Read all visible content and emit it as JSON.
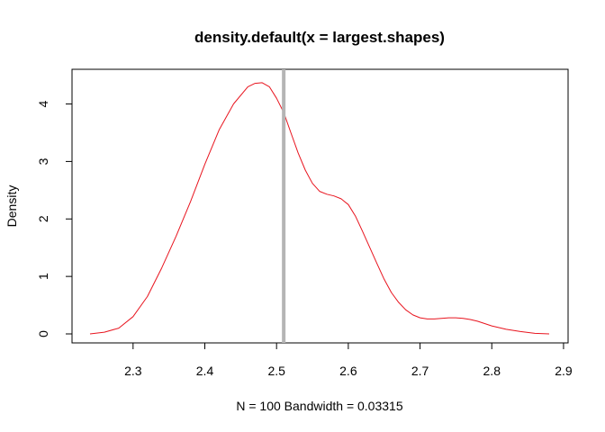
{
  "chart_data": {
    "type": "line",
    "title": "density.default(x = largest.shapes)",
    "xlabel": "N = 100   Bandwidth = 0.03315",
    "ylabel": "Density",
    "xlim": [
      2.24,
      2.88
    ],
    "ylim": [
      0,
      4.4
    ],
    "x_ticks": [
      {
        "value": 2.3,
        "label": "2.3"
      },
      {
        "value": 2.4,
        "label": "2.4"
      },
      {
        "value": 2.5,
        "label": "2.5"
      },
      {
        "value": 2.6,
        "label": "2.6"
      },
      {
        "value": 2.7,
        "label": "2.7"
      },
      {
        "value": 2.8,
        "label": "2.8"
      },
      {
        "value": 2.9,
        "label": "2.9"
      }
    ],
    "y_ticks": [
      {
        "value": 0,
        "label": "0"
      },
      {
        "value": 1,
        "label": "1"
      },
      {
        "value": 2,
        "label": "2"
      },
      {
        "value": 3,
        "label": "3"
      },
      {
        "value": 4,
        "label": "4"
      }
    ],
    "series": [
      {
        "color": "#e8141e",
        "x": [
          2.24,
          2.26,
          2.28,
          2.3,
          2.32,
          2.34,
          2.36,
          2.38,
          2.4,
          2.42,
          2.44,
          2.46,
          2.47,
          2.48,
          2.49,
          2.5,
          2.51,
          2.52,
          2.53,
          2.54,
          2.55,
          2.56,
          2.57,
          2.58,
          2.59,
          2.6,
          2.61,
          2.62,
          2.63,
          2.64,
          2.65,
          2.66,
          2.67,
          2.68,
          2.69,
          2.7,
          2.71,
          2.72,
          2.73,
          2.74,
          2.75,
          2.76,
          2.77,
          2.78,
          2.79,
          2.8,
          2.82,
          2.84,
          2.86,
          2.88
        ],
        "y": [
          0.0,
          0.03,
          0.1,
          0.3,
          0.65,
          1.15,
          1.7,
          2.3,
          2.95,
          3.55,
          4.0,
          4.3,
          4.36,
          4.37,
          4.3,
          4.1,
          3.85,
          3.5,
          3.15,
          2.85,
          2.62,
          2.48,
          2.43,
          2.4,
          2.35,
          2.25,
          2.05,
          1.78,
          1.5,
          1.22,
          0.95,
          0.72,
          0.55,
          0.42,
          0.33,
          0.28,
          0.26,
          0.26,
          0.27,
          0.28,
          0.28,
          0.27,
          0.25,
          0.22,
          0.18,
          0.14,
          0.08,
          0.04,
          0.01,
          0.0
        ]
      }
    ],
    "vertical_line": {
      "x": 2.51,
      "color": "#b5b5b5"
    }
  }
}
